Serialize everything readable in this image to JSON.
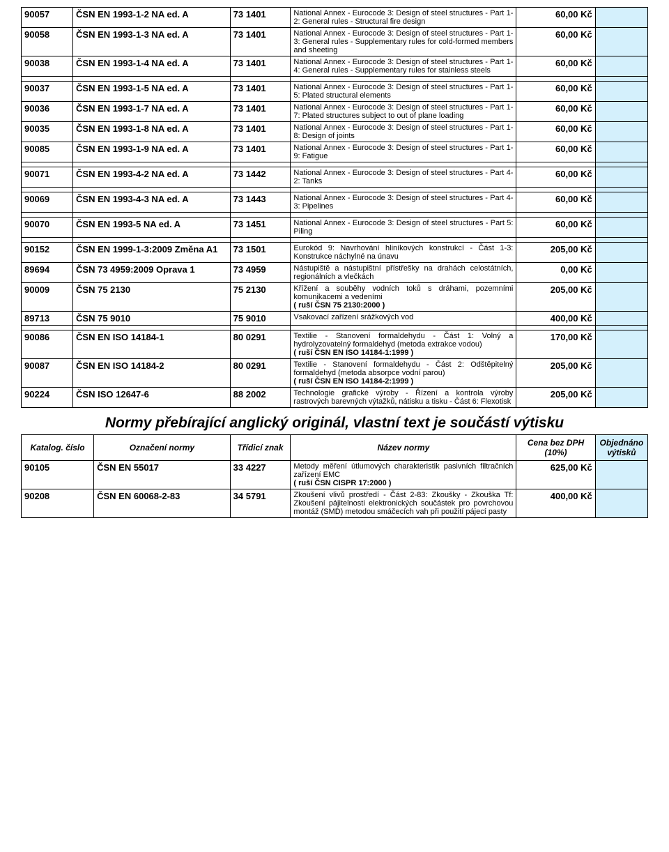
{
  "table1": {
    "rows": [
      {
        "cat": "90057",
        "std": "ČSN EN 1993-1-2 NA ed. A",
        "code": "73 1401",
        "desc": "National Annex - Eurocode 3: Design of steel structures - Part 1-2: General rules - Structural fire design",
        "price": "60,00 Kč"
      },
      {
        "cat": "90058",
        "std": "ČSN EN 1993-1-3 NA ed. A",
        "code": "73 1401",
        "desc": "National Annex - Eurocode 3: Design of steel structures - Part 1-3: General rules - Supplementary rules for cold-formed members and sheeting",
        "price": "60,00 Kč"
      },
      {
        "cat": "90038",
        "std": "ČSN EN 1993-1-4 NA ed. A",
        "code": "73 1401",
        "desc": "National Annex - Eurocode 3: Design of steel structures - Part 1-4: General rules - Supplementary rules for stainless steels",
        "price": "60,00 Kč"
      },
      {
        "spacer": true
      },
      {
        "cat": "90037",
        "std": "ČSN EN 1993-1-5 NA ed. A",
        "code": "73 1401",
        "desc": "National Annex - Eurocode 3: Design of steel structures - Part 1-5: Plated structural elements",
        "price": "60,00 Kč"
      },
      {
        "cat": "90036",
        "std": "ČSN EN 1993-1-7 NA ed. A",
        "code": "73 1401",
        "desc": "National Annex - Eurocode 3: Design of steel structures - Part 1-7: Plated structures subject to out of plane loading",
        "price": "60,00 Kč"
      },
      {
        "cat": "90035",
        "std": "ČSN EN 1993-1-8 NA ed. A",
        "code": "73 1401",
        "desc": "National Annex - Eurocode 3: Design of steel structures - Part 1-8: Design of joints",
        "price": "60,00 Kč"
      },
      {
        "cat": "90085",
        "std": "ČSN EN 1993-1-9 NA ed. A",
        "code": "73 1401",
        "desc": "National Annex - Eurocode 3: Design of steel structures - Part 1-9: Fatigue",
        "price": "60,00 Kč"
      },
      {
        "spacer": true
      },
      {
        "cat": "90071",
        "std": "ČSN EN 1993-4-2 NA ed. A",
        "code": "73 1442",
        "desc": "National Annex - Eurocode 3: Design of steel structures - Part 4-2: Tanks",
        "price": "60,00 Kč"
      },
      {
        "spacer": true
      },
      {
        "cat": "90069",
        "std": "ČSN EN 1993-4-3 NA ed. A",
        "code": "73 1443",
        "desc": "National Annex - Eurocode 3: Design of steel structures - Part 4-3: Pipelines",
        "price": "60,00 Kč"
      },
      {
        "spacer": true
      },
      {
        "cat": "90070",
        "std": "ČSN EN 1993-5 NA ed. A",
        "code": "73 1451",
        "desc": "National Annex - Eurocode 3: Design of steel structures - Part 5: Piling",
        "price": "60,00 Kč"
      },
      {
        "spacer": true
      },
      {
        "cat": "90152",
        "std": "ČSN EN 1999-1-3:2009\nZměna A1",
        "code": "73 1501",
        "desc": "Eurokód 9: Navrhování hliníkových konstrukcí - Část 1-3: Konstrukce náchylné na únavu",
        "price": "205,00 Kč"
      },
      {
        "cat": "89694",
        "std": "ČSN 73 4959:2009 Oprava 1",
        "code": "73 4959",
        "desc": "Nástupiště a nástupištní přístřešky na drahách celostátních, regionálních a vlečkách",
        "price": "0,00 Kč"
      },
      {
        "cat": "90009",
        "std": "ČSN 75 2130",
        "code": "75 2130",
        "desc": "Křížení a souběhy vodních toků s dráhami, pozemními komunikacemi a vedeními",
        "rusi": "( ruší ČSN 75 2130:2000 )",
        "price": "205,00 Kč"
      },
      {
        "cat": "89713",
        "std": "ČSN 75 9010",
        "code": "75 9010",
        "desc": "Vsakovací zařízení srážkových vod",
        "price": "400,00 Kč"
      },
      {
        "spacer": true
      },
      {
        "cat": "90086",
        "std": "ČSN EN ISO 14184-1",
        "code": "80 0291",
        "desc": "Textilie - Stanovení formaldehydu - Část 1: Volný a hydrolyzovatelný formaldehyd (metoda extrakce vodou)",
        "rusi": "( ruší ČSN EN ISO 14184-1:1999 )",
        "price": "170,00 Kč"
      },
      {
        "cat": "90087",
        "std": "ČSN EN ISO 14184-2",
        "code": "80 0291",
        "desc": "Textilie - Stanovení formaldehydu - Část 2: Odštěpitelný formaldehyd (metoda absorpce vodní parou)",
        "rusi": "( ruší ČSN EN ISO 14184-2:1999 )",
        "price": "205,00 Kč"
      },
      {
        "cat": "90224",
        "std": "ČSN ISO 12647-6",
        "code": "88 2002",
        "desc": "Technologie grafické výroby - Řízení a kontrola výroby rastrových barevných výtažků, nátisku a tisku - Část 6: Flexotisk",
        "price": "205,00 Kč"
      }
    ]
  },
  "section2": {
    "title": "Normy přebírající anglický originál, vlastní text je součástí výtisku",
    "header": {
      "cat": "Katalog. číslo",
      "std": "Označení normy",
      "code": "Třídicí znak",
      "desc": "Název normy",
      "price": "Cena bez DPH (10%)",
      "order": "Objednáno výtisků"
    },
    "rows": [
      {
        "cat": "90105",
        "std": "ČSN EN 55017",
        "code": "33 4227",
        "desc": "Metody měření útlumových charakteristik pasivních filtračních zařízení EMC",
        "rusi": "( ruší ČSN CISPR 17:2000 )",
        "price": "625,00 Kč"
      },
      {
        "cat": "90208",
        "std": "ČSN EN 60068-2-83",
        "code": "34 5791",
        "desc": "Zkoušení vlivů prostředí - Část 2-83: Zkoušky - Zkouška Tf: Zkoušení pájitelnosti elektronických součástek pro povrchovou montáž (SMD) metodou smáčecích vah při použití pájecí pasty",
        "price": "400,00 Kč"
      }
    ]
  },
  "colors": {
    "order_bg": "#d4f0fc",
    "border": "#000000",
    "text": "#000000"
  }
}
